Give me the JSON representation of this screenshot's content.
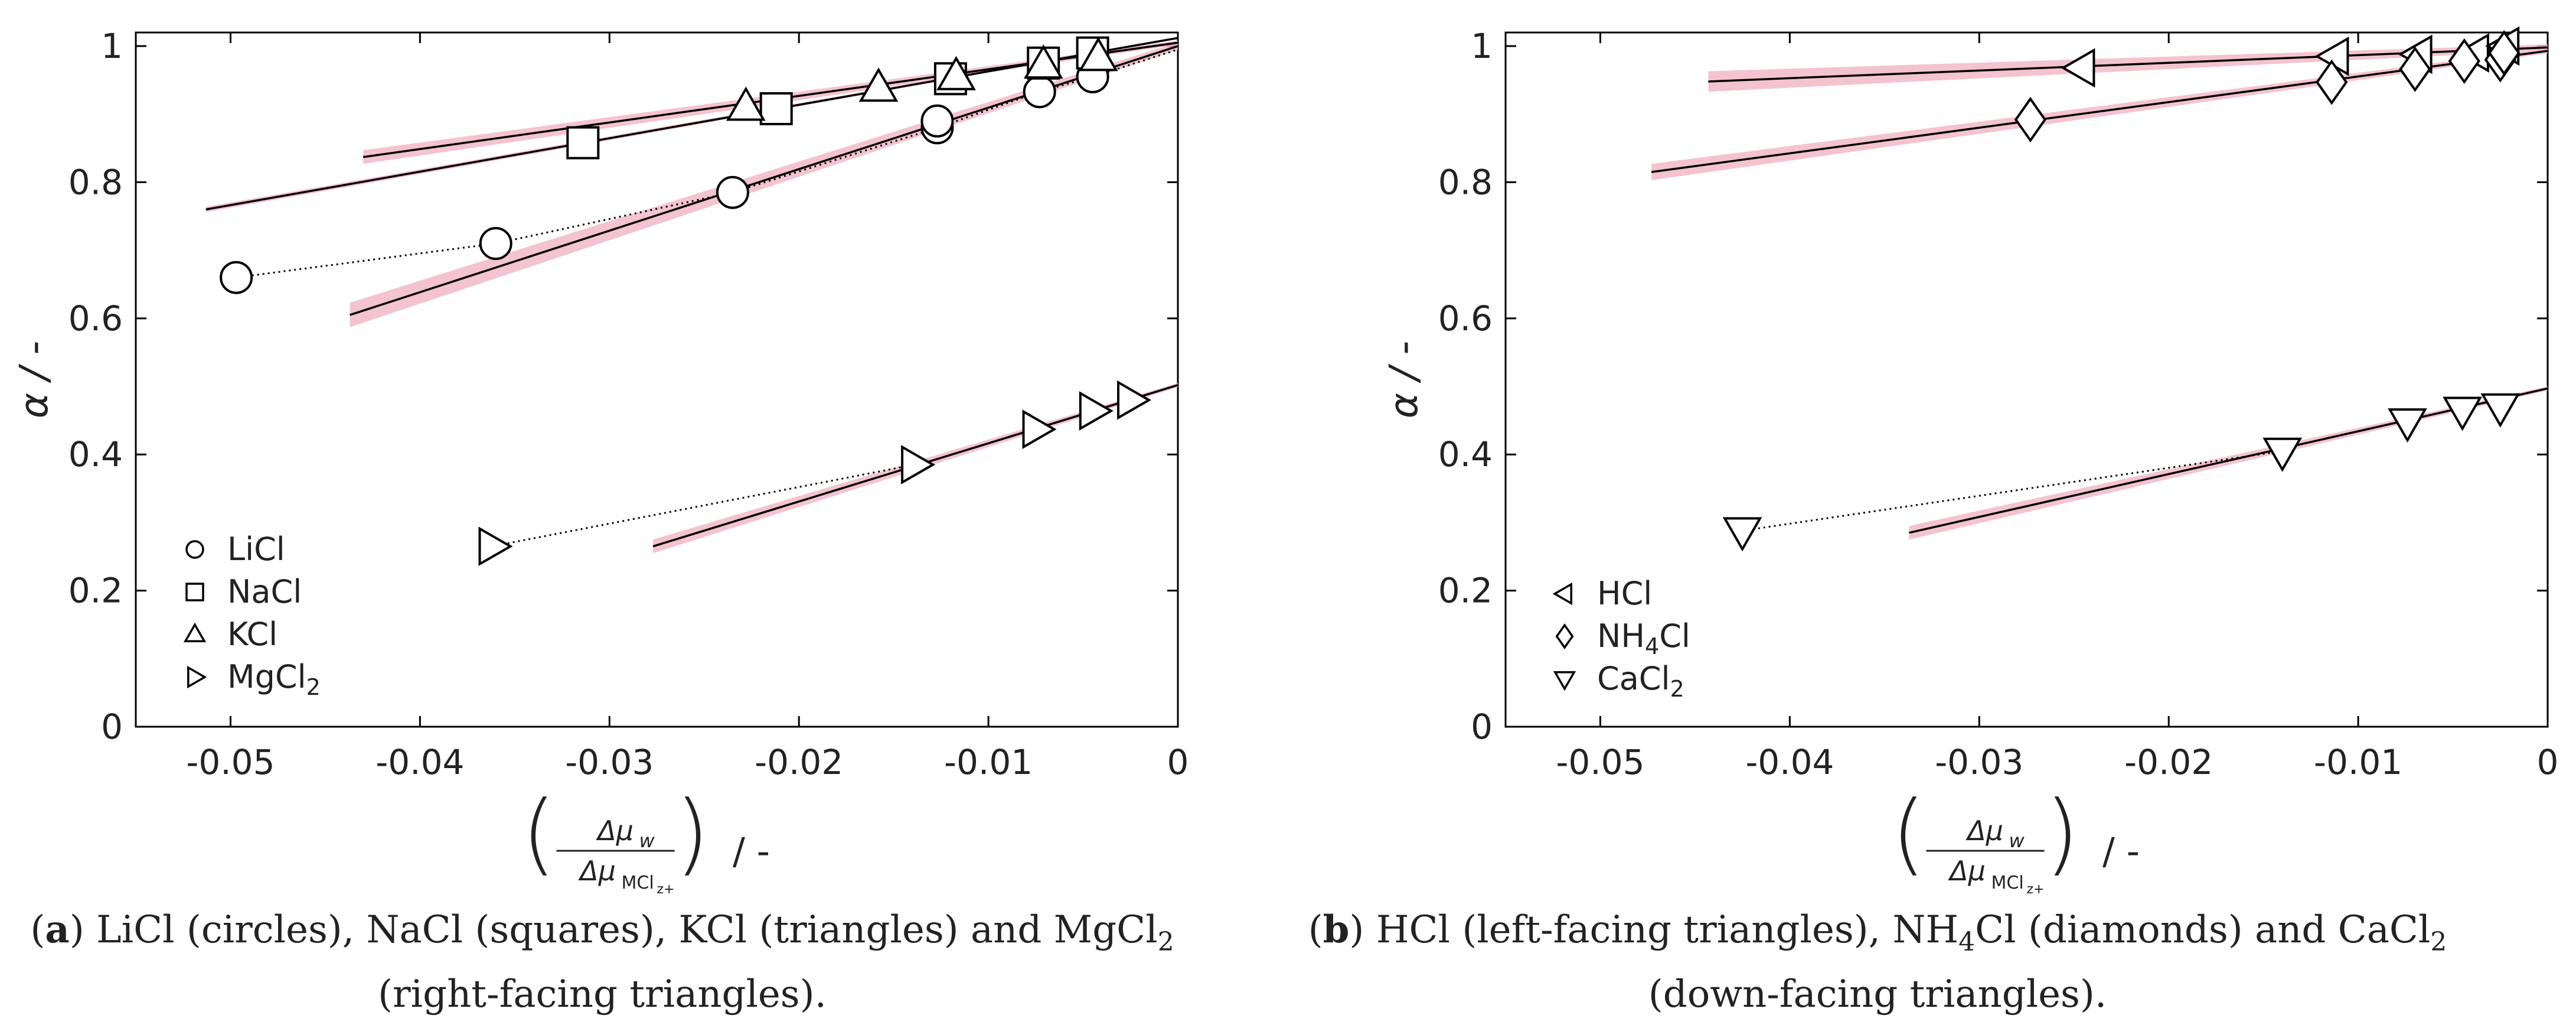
{
  "colors": {
    "fit_band": "#f2b8c8",
    "line": "#000000",
    "marker_fill": "#ffffff",
    "axis": "#000000"
  },
  "chart_data": [
    {
      "panel": "a",
      "type": "scatter",
      "xlabel": "(Δμ_w / Δμ_MClz+) / -",
      "ylabel": "α / -",
      "xlim": [
        -0.055,
        0
      ],
      "ylim": [
        0,
        1.02
      ],
      "xticks": [
        -0.05,
        -0.04,
        -0.03,
        -0.02,
        -0.01,
        0
      ],
      "xtick_labels": [
        "-0.05",
        "-0.04",
        "-0.03",
        "-0.02",
        "-0.01",
        "0"
      ],
      "yticks": [
        0,
        0.2,
        0.4,
        0.6,
        0.8,
        1
      ],
      "ytick_labels": [
        "0",
        "0.2",
        "0.4",
        "0.6",
        "0.8",
        "1"
      ],
      "legend": {
        "position": "bottom-left",
        "entries": [
          {
            "label": "LiCl",
            "marker": "circle"
          },
          {
            "label": "NaCl",
            "marker": "square"
          },
          {
            "label": "KCl",
            "marker": "triangle-up"
          },
          {
            "label": "MgCl",
            "sub": "2",
            "marker": "triangle-right"
          }
        ]
      },
      "series": [
        {
          "name": "LiCl",
          "marker": "circle",
          "x": [
            -0.0497,
            -0.036,
            -0.0235,
            -0.0127,
            -0.0127,
            -0.0073,
            -0.0045
          ],
          "y": [
            0.66,
            0.71,
            0.785,
            0.88,
            0.89,
            0.933,
            0.955
          ],
          "fit": {
            "x": [
              -0.0437,
              0
            ],
            "y": [
              0.605,
              1.0
            ],
            "band": 0.018
          },
          "dotted_x": [
            -0.0497,
            -0.036,
            -0.0235,
            -0.0127,
            -0.0073,
            -0.0045,
            0
          ],
          "dotted_y": [
            0.66,
            0.71,
            0.785,
            0.88,
            0.933,
            0.955,
            0.995
          ]
        },
        {
          "name": "NaCl",
          "marker": "square",
          "x": [
            -0.0314,
            -0.0212,
            -0.012,
            -0.0071,
            -0.0045
          ],
          "y": [
            0.858,
            0.908,
            0.952,
            0.975,
            0.99
          ],
          "fit": {
            "x": [
              -0.0513,
              0
            ],
            "y": [
              0.76,
              1.012
            ],
            "band": 0.004
          },
          "dotted_x": [],
          "dotted_y": []
        },
        {
          "name": "KCl",
          "marker": "triangle-up",
          "x": [
            -0.0228,
            -0.0158,
            -0.0117,
            -0.0071,
            -0.0042
          ],
          "y": [
            0.91,
            0.938,
            0.955,
            0.972,
            0.983
          ],
          "fit": {
            "x": [
              -0.043,
              0
            ],
            "y": [
              0.837,
              1.005
            ],
            "band": 0.01
          },
          "dotted_x": [],
          "dotted_y": []
        },
        {
          "name": "MgCl2",
          "marker": "triangle-right",
          "x": [
            -0.0362,
            -0.0139,
            -0.0075,
            -0.0045,
            -0.0025
          ],
          "y": [
            0.265,
            0.385,
            0.437,
            0.464,
            0.48
          ],
          "fit": {
            "x": [
              -0.0277,
              0
            ],
            "y": [
              0.265,
              0.502
            ],
            "band": 0.01
          },
          "dotted_x": [
            -0.0362,
            -0.0139
          ],
          "dotted_y": [
            0.265,
            0.385
          ]
        }
      ]
    },
    {
      "panel": "b",
      "type": "scatter",
      "xlabel": "(Δμ_w / Δμ_MClz+) / -",
      "ylabel": "α / -",
      "xlim": [
        -0.055,
        0
      ],
      "ylim": [
        0,
        1.02
      ],
      "xticks": [
        -0.05,
        -0.04,
        -0.03,
        -0.02,
        -0.01,
        0
      ],
      "xtick_labels": [
        "-0.05",
        "-0.04",
        "-0.03",
        "-0.02",
        "-0.01",
        "0"
      ],
      "yticks": [
        0,
        0.2,
        0.4,
        0.6,
        0.8,
        1
      ],
      "ytick_labels": [
        "0",
        "0.2",
        "0.4",
        "0.6",
        "0.8",
        "1"
      ],
      "legend": {
        "position": "bottom-left",
        "entries": [
          {
            "label": "HCl",
            "marker": "triangle-left"
          },
          {
            "label": "NH",
            "sub": "4",
            "label2": "Cl",
            "marker": "diamond"
          },
          {
            "label": "CaCl",
            "sub": "2",
            "marker": "triangle-down"
          }
        ]
      },
      "series": [
        {
          "name": "HCl",
          "marker": "triangle-left",
          "x": [
            -0.0246,
            -0.0112,
            -0.0068,
            -0.0038,
            -0.0022
          ],
          "y": [
            0.968,
            0.985,
            0.988,
            0.99,
            1.0
          ],
          "fit": {
            "x": [
              -0.0443,
              0
            ],
            "y": [
              0.948,
              0.998
            ],
            "band": 0.015
          },
          "dotted_x": [],
          "dotted_y": []
        },
        {
          "name": "NH4Cl",
          "marker": "diamond",
          "x": [
            -0.0273,
            -0.0114,
            -0.007,
            -0.0044,
            -0.0025,
            -0.0023
          ],
          "y": [
            0.892,
            0.947,
            0.966,
            0.978,
            0.98,
            0.99
          ],
          "fit": {
            "x": [
              -0.0473,
              0
            ],
            "y": [
              0.815,
              0.993
            ],
            "band": 0.012
          },
          "dotted_x": [],
          "dotted_y": []
        },
        {
          "name": "CaCl2",
          "marker": "triangle-down",
          "x": [
            -0.0425,
            -0.014,
            -0.0074,
            -0.0045,
            -0.0025
          ],
          "y": [
            0.288,
            0.405,
            0.448,
            0.465,
            0.47
          ],
          "fit": {
            "x": [
              -0.0337,
              0
            ],
            "y": [
              0.285,
              0.497
            ],
            "band": 0.01
          },
          "dotted_x": [
            -0.0425,
            -0.014
          ],
          "dotted_y": [
            0.288,
            0.405
          ]
        }
      ]
    }
  ],
  "captions": {
    "a": {
      "tag": "a",
      "text_pre": "LiCl (circles), NaCl (squares), KCl (triangles) and MgCl",
      "sub": "2",
      "text_post": "(right-facing triangles)."
    },
    "b": {
      "tag": "b",
      "text_pre": "HCl (left-facing triangles), NH",
      "sub": "4",
      "text_mid": "Cl (diamonds) and CaCl",
      "sub2": "2",
      "text_post": "(down-facing triangles)."
    }
  }
}
